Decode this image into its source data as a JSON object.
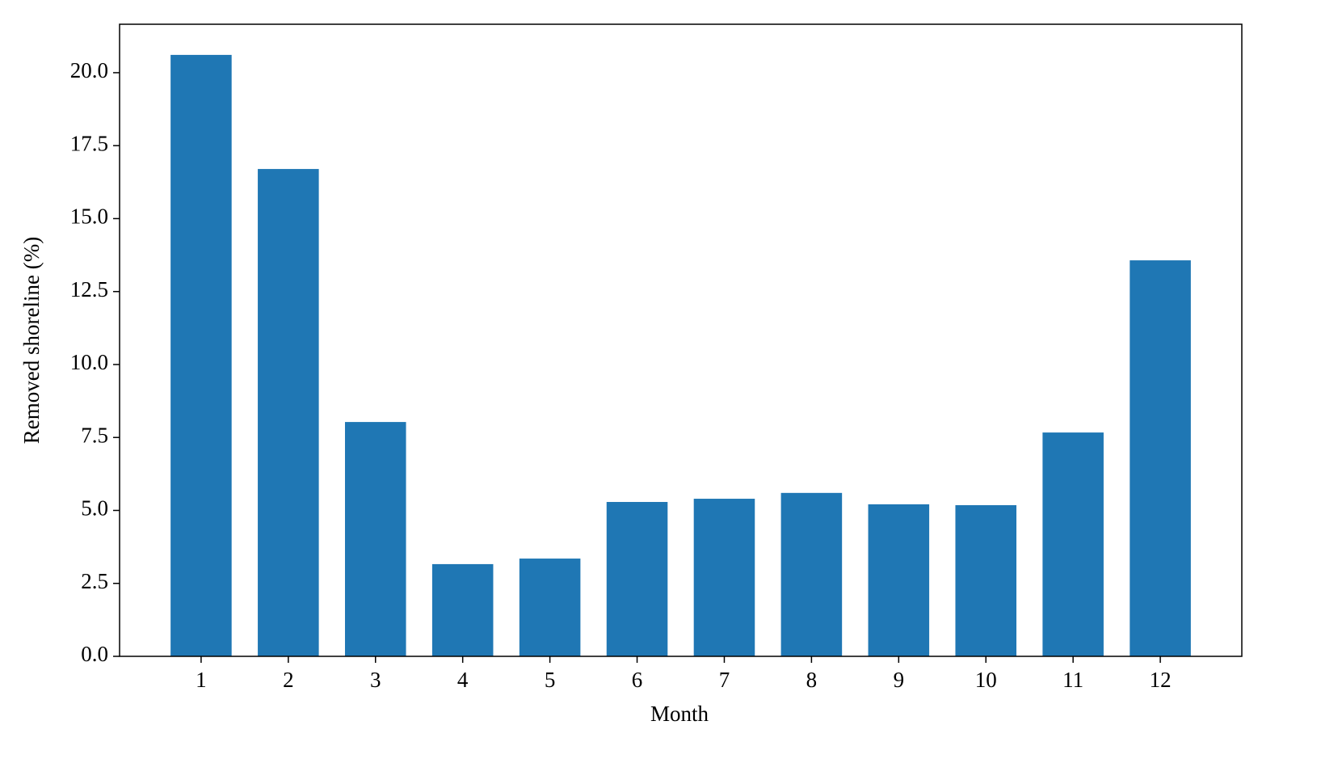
{
  "chart_data": {
    "type": "bar",
    "x_label": "Month",
    "y_label": "Removed shoreline (%)",
    "categories": [
      "1",
      "2",
      "3",
      "4",
      "5",
      "6",
      "7",
      "8",
      "9",
      "10",
      "11",
      "12"
    ],
    "values": [
      20.61,
      16.7,
      8.03,
      3.16,
      3.35,
      5.29,
      5.4,
      5.6,
      5.21,
      5.18,
      7.67,
      13.57
    ],
    "color": "#1f77b4",
    "ylim": [
      0,
      21.66
    ],
    "yticks": [
      {
        "value": 0,
        "label": "0.0"
      },
      2.5,
      {
        "value": 5,
        "label": "5.0"
      },
      7.5,
      {
        "value": 10,
        "label": "10.0"
      },
      12.5,
      {
        "value": 15,
        "label": "15.0"
      },
      17.5,
      {
        "value": 20,
        "label": "20.0"
      }
    ],
    "grid": false
  }
}
